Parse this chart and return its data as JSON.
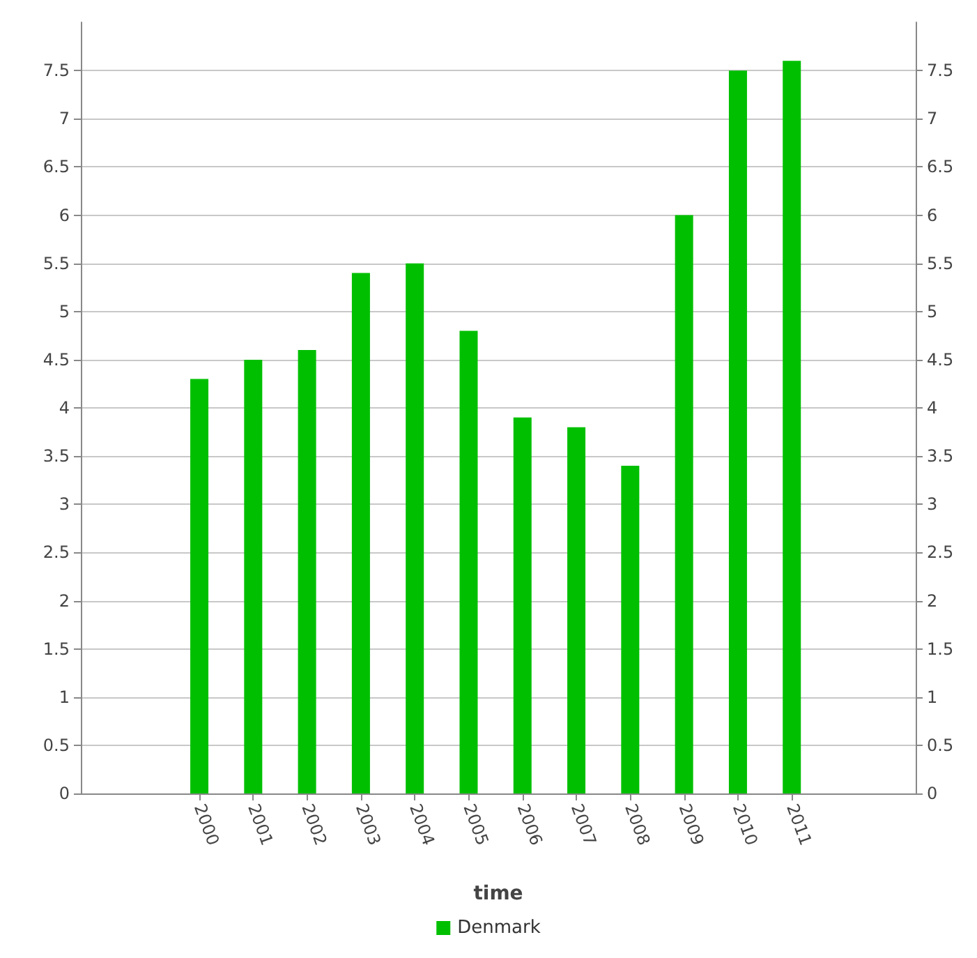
{
  "chart_data": {
    "type": "bar",
    "xlabel": "time",
    "x": [
      2000,
      2001,
      2002,
      2003,
      2004,
      2005,
      2006,
      2007,
      2008,
      2009,
      2010,
      2011
    ],
    "xlim": [
      1997.8,
      2013.3
    ],
    "xticks": [
      2000,
      2001,
      2002,
      2003,
      2004,
      2005,
      2006,
      2007,
      2008,
      2009,
      2010,
      2011
    ],
    "series": [
      {
        "name": "Denmark",
        "color": "#00bf00",
        "values": [
          4.3,
          4.5,
          4.6,
          5.4,
          5.5,
          4.8,
          3.9,
          3.8,
          3.4,
          6.0,
          7.5,
          7.6
        ]
      }
    ],
    "ylim": [
      0,
      8
    ],
    "yticks": [
      0,
      0.5,
      1,
      1.5,
      2,
      2.5,
      3,
      3.5,
      4,
      4.5,
      5,
      5.5,
      6,
      6.5,
      7,
      7.5
    ],
    "y2lim": [
      0,
      8
    ],
    "y2ticks": [
      0,
      0.5,
      1,
      1.5,
      2,
      2.5,
      3,
      3.5,
      4,
      4.5,
      5,
      5.5,
      6,
      6.5,
      7,
      7.5
    ],
    "grid": "y",
    "legend": "bottom"
  }
}
